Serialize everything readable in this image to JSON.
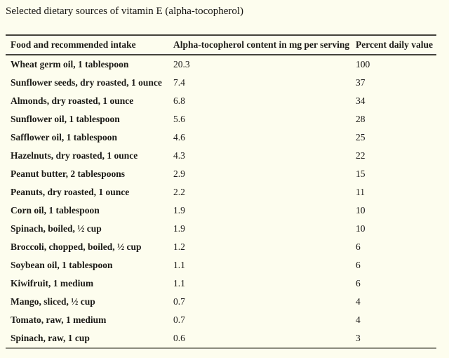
{
  "page": {
    "background_color": "#fdfdee",
    "title": "Selected dietary sources of vitamin E (alpha-tocopherol)"
  },
  "table": {
    "headers": [
      "Food and recommended intake",
      "Alpha-tocopherol content in mg per serving",
      "Percent daily value"
    ],
    "rows": [
      {
        "food": "Wheat germ oil, 1 tablespoon",
        "content_mg": "20.3",
        "percent_dv": "100"
      },
      {
        "food": "Sunflower seeds, dry roasted, 1 ounce",
        "content_mg": "7.4",
        "percent_dv": "37"
      },
      {
        "food": "Almonds, dry roasted, 1 ounce",
        "content_mg": "6.8",
        "percent_dv": "34"
      },
      {
        "food": "Sunflower oil, 1 tablespoon",
        "content_mg": "5.6",
        "percent_dv": "28"
      },
      {
        "food": "Safflower oil, 1 tablespoon",
        "content_mg": "4.6",
        "percent_dv": "25"
      },
      {
        "food": "Hazelnuts, dry roasted, 1 ounce",
        "content_mg": "4.3",
        "percent_dv": "22"
      },
      {
        "food": "Peanut butter, 2 tablespoons",
        "content_mg": "2.9",
        "percent_dv": "15"
      },
      {
        "food": "Peanuts, dry roasted, 1 ounce",
        "content_mg": "2.2",
        "percent_dv": "11"
      },
      {
        "food": "Corn oil, 1 tablespoon",
        "content_mg": "1.9",
        "percent_dv": "10"
      },
      {
        "food": "Spinach, boiled, ½ cup",
        "content_mg": "1.9",
        "percent_dv": "10"
      },
      {
        "food": "Broccoli, chopped, boiled, ½ cup",
        "content_mg": "1.2",
        "percent_dv": "6"
      },
      {
        "food": "Soybean oil, 1 tablespoon",
        "content_mg": "1.1",
        "percent_dv": "6"
      },
      {
        "food": "Kiwifruit, 1 medium",
        "content_mg": "1.1",
        "percent_dv": "6"
      },
      {
        "food": "Mango, sliced, ½ cup",
        "content_mg": "0.7",
        "percent_dv": "4"
      },
      {
        "food": "Tomato, raw, 1 medium",
        "content_mg": "0.7",
        "percent_dv": "4"
      },
      {
        "food": "Spinach, raw, 1 cup",
        "content_mg": "0.6",
        "percent_dv": "3"
      }
    ]
  }
}
